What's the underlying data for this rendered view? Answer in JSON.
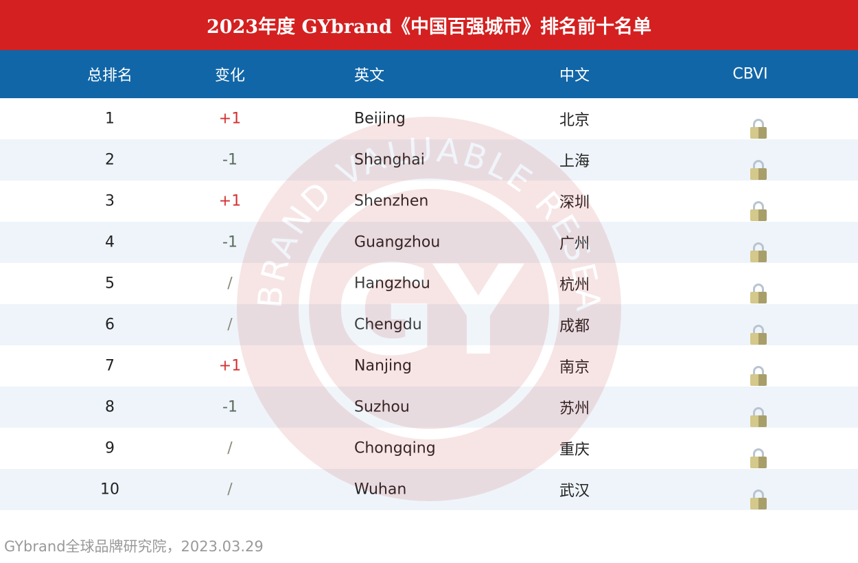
{
  "title": "2023年度 GYbrand《中国百强城市》排名前十名单",
  "columns": [
    "总排名",
    "变化",
    "英文",
    "中文",
    "CBVI"
  ],
  "rows": [
    {
      "rank": "1",
      "change": "+1",
      "change_type": "up",
      "english": "Beijing",
      "chinese": "北京",
      "cbvi": "lock-icon"
    },
    {
      "rank": "2",
      "change": "-1",
      "change_type": "down",
      "english": "Shanghai",
      "chinese": "上海",
      "cbvi": "lock-icon"
    },
    {
      "rank": "3",
      "change": "+1",
      "change_type": "up",
      "english": "Shenzhen",
      "chinese": "深圳",
      "cbvi": "lock-icon"
    },
    {
      "rank": "4",
      "change": "-1",
      "change_type": "down",
      "english": "Guangzhou",
      "chinese": "广州",
      "cbvi": "lock-icon"
    },
    {
      "rank": "5",
      "change": "/",
      "change_type": "same",
      "english": "Hangzhou",
      "chinese": "杭州",
      "cbvi": "lock-icon"
    },
    {
      "rank": "6",
      "change": "/",
      "change_type": "same",
      "english": "Chengdu",
      "chinese": "成都",
      "cbvi": "lock-icon"
    },
    {
      "rank": "7",
      "change": "+1",
      "change_type": "up",
      "english": "Nanjing",
      "chinese": "南京",
      "cbvi": "lock-icon"
    },
    {
      "rank": "8",
      "change": "-1",
      "change_type": "down",
      "english": "Suzhou",
      "chinese": "苏州",
      "cbvi": "lock-icon"
    },
    {
      "rank": "9",
      "change": "/",
      "change_type": "same",
      "english": "Chongqing",
      "chinese": "重庆",
      "cbvi": "lock-icon"
    },
    {
      "rank": "10",
      "change": "/",
      "change_type": "same",
      "english": "Wuhan",
      "chinese": "武汉",
      "cbvi": "lock-icon"
    }
  ],
  "watermark": {
    "ring_text": "BRAND VALUABLE RESEARCH",
    "logo": "GY"
  },
  "footer": "GYbrand全球品牌研究院，2023.03.29",
  "colors": {
    "title_bg": "#D42020",
    "header_bg": "#1166A7",
    "stripe": "#EEF4FA",
    "up": "#D43030",
    "down": "#5a6a5a"
  }
}
